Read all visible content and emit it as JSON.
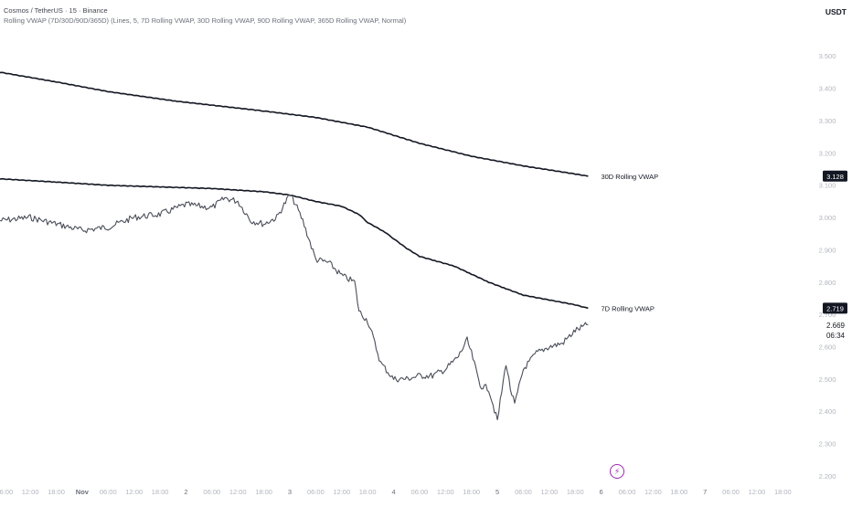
{
  "legend": {
    "symbol": "Cosmos / TetherUS · 15 · Binance",
    "indicator": "Rolling VWAP (7D/30D/90D/365D) (Lines, 5, 7D Rolling VWAP, 30D Rolling VWAP, 90D Rolling VWAP, 365D Rolling VWAP, Normal)"
  },
  "currency": "USDT",
  "chart_data": {
    "type": "line",
    "ylim": [
      2.18,
      3.56
    ],
    "y_ticks": [
      "3.500",
      "3.400",
      "3.300",
      "3.200",
      "3.100",
      "3.000",
      "2.900",
      "2.800",
      "2.700",
      "2.600",
      "2.500",
      "2.400",
      "2.300",
      "2.200"
    ],
    "x_ticks": [
      "06:00",
      "12:00",
      "18:00",
      "Nov",
      "06:00",
      "12:00",
      "18:00",
      "2",
      "06:00",
      "12:00",
      "18:00",
      "3",
      "06:00",
      "12:00",
      "18:00",
      "4",
      "06:00",
      "12:00",
      "18:00",
      "5",
      "06:00",
      "12:00",
      "18:00",
      "6",
      "06:00",
      "12:00",
      "18:00",
      "7",
      "06:00",
      "12:00",
      "18:00"
    ],
    "x_tick_index": [
      0,
      6,
      12,
      18,
      24,
      30,
      36,
      42,
      48,
      54,
      60,
      66,
      72,
      78,
      84,
      90,
      96,
      102,
      108,
      114,
      120,
      126,
      132,
      138,
      144,
      150,
      156,
      162,
      168,
      174,
      180
    ],
    "x_range": [
      -1,
      185
    ],
    "series": [
      {
        "name": "30D Rolling VWAP",
        "color": "#131722",
        "x": [
          -1,
          12,
          24,
          40,
          60,
          72,
          84,
          90,
          96,
          108,
          120,
          132,
          135
        ],
        "y": [
          3.45,
          3.42,
          3.39,
          3.36,
          3.33,
          3.31,
          3.28,
          3.255,
          3.23,
          3.19,
          3.16,
          3.135,
          3.128
        ],
        "price_label": "3.128"
      },
      {
        "name": "7D Rolling VWAP",
        "color": "#131722",
        "x": [
          -1,
          12,
          24,
          36,
          48,
          60,
          66,
          72,
          78,
          82,
          84,
          88,
          90,
          93,
          96,
          100,
          104,
          108,
          112,
          116,
          120,
          126,
          132,
          135
        ],
        "y": [
          3.12,
          3.11,
          3.1,
          3.095,
          3.09,
          3.08,
          3.07,
          3.05,
          3.035,
          3.01,
          2.985,
          2.955,
          2.935,
          2.905,
          2.88,
          2.865,
          2.85,
          2.825,
          2.8,
          2.78,
          2.76,
          2.745,
          2.73,
          2.719
        ],
        "price_label": "2.719"
      },
      {
        "name": "Price",
        "color": "#4a4e59",
        "x": [
          -1,
          6,
          12,
          18,
          24,
          30,
          36,
          42,
          48,
          51,
          54,
          57,
          60,
          63,
          66,
          67,
          69,
          72,
          75,
          78,
          81,
          82,
          84,
          85,
          87,
          90,
          93,
          96,
          99,
          102,
          105,
          107,
          108,
          110,
          112,
          114,
          116,
          117,
          118,
          120,
          123,
          126,
          129,
          132,
          135
        ],
        "y": [
          2.99,
          3.0,
          2.98,
          2.96,
          2.97,
          3.0,
          3.01,
          3.04,
          3.03,
          3.06,
          3.05,
          2.99,
          2.98,
          3.0,
          3.07,
          3.05,
          2.99,
          2.87,
          2.86,
          2.82,
          2.8,
          2.71,
          2.68,
          2.64,
          2.55,
          2.5,
          2.5,
          2.51,
          2.51,
          2.53,
          2.57,
          2.62,
          2.58,
          2.48,
          2.47,
          2.37,
          2.55,
          2.47,
          2.42,
          2.53,
          2.58,
          2.6,
          2.61,
          2.65,
          2.669
        ],
        "price_label": "2.669",
        "countdown": "06:34"
      }
    ]
  }
}
